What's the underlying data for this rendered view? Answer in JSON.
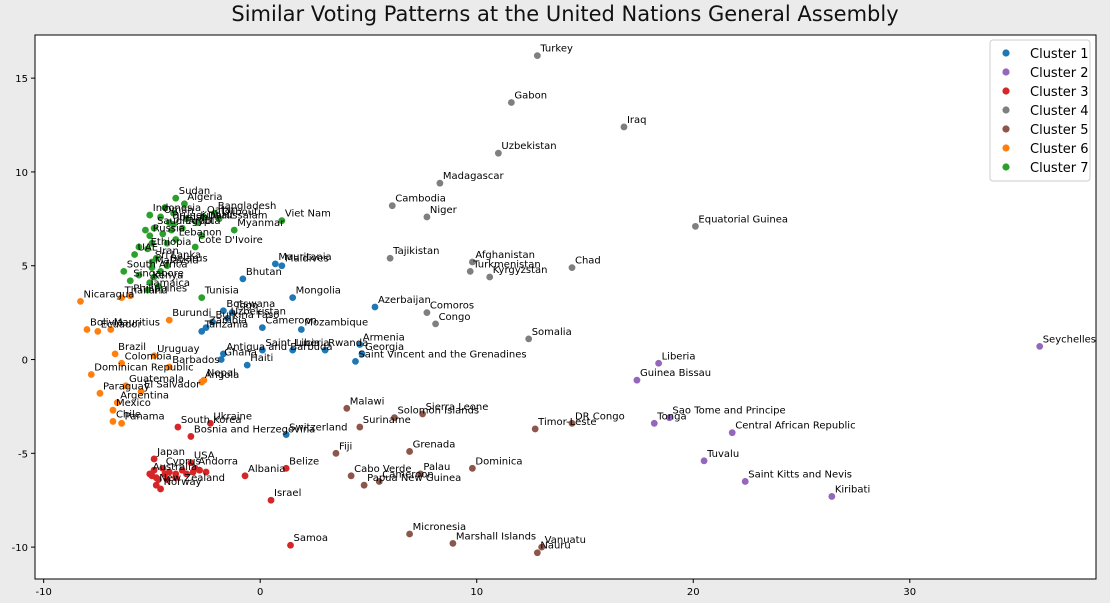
{
  "chart_data": {
    "type": "scatter",
    "title": "Similar Voting Patterns at the United Nations General Assembly",
    "xlabel": "",
    "ylabel": "",
    "xlim": [
      -10.4,
      38.6
    ],
    "ylim": [
      -11.7,
      17.3
    ],
    "xticks": [
      -10,
      0,
      10,
      20,
      30
    ],
    "yticks": [
      -10,
      -5,
      0,
      5,
      10,
      15
    ],
    "legend_position": "top-right",
    "grid": false,
    "series": [
      {
        "name": "Cluster 1",
        "color": "#1f77b4",
        "points": [
          {
            "label": "Bhutan",
            "x": -0.8,
            "y": 4.3
          },
          {
            "label": "Mauritania",
            "x": 0.7,
            "y": 5.1
          },
          {
            "label": "Maldives",
            "x": 1.0,
            "y": 5.0
          },
          {
            "label": "Mongolia",
            "x": 1.5,
            "y": 3.3
          },
          {
            "label": "Azerbaijan",
            "x": 5.3,
            "y": 2.8
          },
          {
            "label": "Botswana",
            "x": -1.7,
            "y": 2.6
          },
          {
            "label": "Togo",
            "x": -1.3,
            "y": 2.5
          },
          {
            "label": "Uzbekistan",
            "x": -1.5,
            "y": 2.2
          },
          {
            "label": "Burkina Faso",
            "x": -2.2,
            "y": 2.0
          },
          {
            "label": "Cameroon",
            "x": 0.1,
            "y": 1.7
          },
          {
            "label": "Mozambique",
            "x": 1.9,
            "y": 1.6
          },
          {
            "label": "Zambia",
            "x": -2.5,
            "y": 1.7
          },
          {
            "label": "Tanzania",
            "x": -2.7,
            "y": 1.5
          },
          {
            "label": "Armenia",
            "x": 4.6,
            "y": 0.8
          },
          {
            "label": "Antigua and Barbuda",
            "x": -1.7,
            "y": 0.3
          },
          {
            "label": "Ghana",
            "x": -1.8,
            "y": 0.0
          },
          {
            "label": "Saint Lucia",
            "x": 0.1,
            "y": 0.5
          },
          {
            "label": "Liberia",
            "x": 1.5,
            "y": 0.5
          },
          {
            "label": "Rwanda",
            "x": 3.0,
            "y": 0.5
          },
          {
            "label": "Georgia",
            "x": 4.7,
            "y": 0.3
          },
          {
            "label": "Haiti",
            "x": -0.6,
            "y": -0.3
          },
          {
            "label": "Saint Vincent and the Grenadines",
            "x": 4.4,
            "y": -0.1
          },
          {
            "label": "Switzerland",
            "x": 1.2,
            "y": -4.0
          }
        ]
      },
      {
        "name": "Cluster 2",
        "color": "#9467bd",
        "points": [
          {
            "label": "Seychelles",
            "x": 36.0,
            "y": 0.7
          },
          {
            "label": "Liberia",
            "x": 18.4,
            "y": -0.2
          },
          {
            "label": "Guinea Bissau",
            "x": 17.4,
            "y": -1.1
          },
          {
            "label": "Tonga",
            "x": 18.2,
            "y": -3.4
          },
          {
            "label": "Sao Tome and Principe",
            "x": 18.9,
            "y": -3.1
          },
          {
            "label": "Central African Republic",
            "x": 21.8,
            "y": -3.9
          },
          {
            "label": "Tuvalu",
            "x": 20.5,
            "y": -5.4
          },
          {
            "label": "Saint Kitts and Nevis",
            "x": 22.4,
            "y": -6.5
          },
          {
            "label": "Kiribati",
            "x": 26.4,
            "y": -7.3
          }
        ]
      },
      {
        "name": "Cluster 3",
        "color": "#d62728",
        "points": [
          {
            "label": "Ukraine",
            "x": -2.3,
            "y": -3.4
          },
          {
            "label": "South Korea",
            "x": -3.8,
            "y": -3.6
          },
          {
            "label": "Bosnia and Herzegovina",
            "x": -3.2,
            "y": -4.1
          },
          {
            "label": "Japan",
            "x": -4.9,
            "y": -5.3
          },
          {
            "label": "USA",
            "x": -3.2,
            "y": -5.5
          },
          {
            "label": "Andorra",
            "x": -3.0,
            "y": -5.8
          },
          {
            "label": "Cyprus",
            "x": -4.5,
            "y": -5.8
          },
          {
            "label": "Albania",
            "x": -0.7,
            "y": -6.2
          },
          {
            "label": "Belize",
            "x": 1.2,
            "y": -5.8
          },
          {
            "label": "New Zealand",
            "x": -4.8,
            "y": -6.7
          },
          {
            "label": "Israel",
            "x": 0.5,
            "y": -7.5
          },
          {
            "label": "Samoa",
            "x": 1.4,
            "y": -9.9
          },
          {
            "label": "Australia",
            "x": -5.1,
            "y": -6.1
          },
          {
            "label": "Norway",
            "x": -4.6,
            "y": -6.9
          },
          {
            "label": "",
            "x": -5.0,
            "y": -6.2
          },
          {
            "label": "",
            "x": -4.8,
            "y": -6.3
          },
          {
            "label": "",
            "x": -4.9,
            "y": -5.9
          },
          {
            "label": "",
            "x": -4.4,
            "y": -6.1
          },
          {
            "label": "",
            "x": -4.2,
            "y": -6.0
          },
          {
            "label": "",
            "x": -3.9,
            "y": -6.1
          },
          {
            "label": "",
            "x": -3.6,
            "y": -5.9
          },
          {
            "label": "",
            "x": -3.4,
            "y": -6.1
          },
          {
            "label": "",
            "x": -3.1,
            "y": -6.0
          },
          {
            "label": "",
            "x": -2.8,
            "y": -5.9
          },
          {
            "label": "",
            "x": -2.5,
            "y": -6.0
          },
          {
            "label": "",
            "x": -4.7,
            "y": -6.4
          },
          {
            "label": "",
            "x": -4.3,
            "y": -6.4
          },
          {
            "label": "",
            "x": -3.9,
            "y": -6.3
          }
        ]
      },
      {
        "name": "Cluster 4",
        "color": "#7f7f7f",
        "points": [
          {
            "label": "Turkey",
            "x": 12.8,
            "y": 16.2
          },
          {
            "label": "Gabon",
            "x": 11.6,
            "y": 13.7
          },
          {
            "label": "Iraq",
            "x": 16.8,
            "y": 12.4
          },
          {
            "label": "Uzbekistan",
            "x": 11.0,
            "y": 11.0
          },
          {
            "label": "Madagascar",
            "x": 8.3,
            "y": 9.4
          },
          {
            "label": "Cambodia",
            "x": 6.1,
            "y": 8.2
          },
          {
            "label": "Niger",
            "x": 7.7,
            "y": 7.6
          },
          {
            "label": "Equatorial Guinea",
            "x": 20.1,
            "y": 7.1
          },
          {
            "label": "Tajikistan",
            "x": 6.0,
            "y": 5.4
          },
          {
            "label": "Afghanistan",
            "x": 9.8,
            "y": 5.2
          },
          {
            "label": "Turkmenistan",
            "x": 9.7,
            "y": 4.7
          },
          {
            "label": "Kyrgyzstan",
            "x": 10.6,
            "y": 4.4
          },
          {
            "label": "Chad",
            "x": 14.4,
            "y": 4.9
          },
          {
            "label": "Comoros",
            "x": 7.7,
            "y": 2.5
          },
          {
            "label": "Congo",
            "x": 8.1,
            "y": 1.9
          },
          {
            "label": "Somalia",
            "x": 12.4,
            "y": 1.1
          }
        ]
      },
      {
        "name": "Cluster 5",
        "color": "#8c564b",
        "points": [
          {
            "label": "Malawi",
            "x": 4.0,
            "y": -2.6
          },
          {
            "label": "Solomon Islands",
            "x": 6.2,
            "y": -3.1
          },
          {
            "label": "Sierra Leone",
            "x": 7.5,
            "y": -2.9
          },
          {
            "label": "Suriname",
            "x": 4.6,
            "y": -3.6
          },
          {
            "label": "Timor-Leste",
            "x": 12.7,
            "y": -3.7
          },
          {
            "label": "DR Congo",
            "x": 14.4,
            "y": -3.4
          },
          {
            "label": "Fiji",
            "x": 3.5,
            "y": -5.0
          },
          {
            "label": "Grenada",
            "x": 6.9,
            "y": -4.9
          },
          {
            "label": "Dominica",
            "x": 9.8,
            "y": -5.8
          },
          {
            "label": "Cabo Verde",
            "x": 4.2,
            "y": -6.2
          },
          {
            "label": "Palau",
            "x": 7.4,
            "y": -6.1
          },
          {
            "label": "Cameroon",
            "x": 5.5,
            "y": -6.5
          },
          {
            "label": "Papua New Guinea",
            "x": 4.8,
            "y": -6.7
          },
          {
            "label": "Micronesia",
            "x": 6.9,
            "y": -9.3
          },
          {
            "label": "Marshall Islands",
            "x": 8.9,
            "y": -9.8
          },
          {
            "label": "Vanuatu",
            "x": 13.0,
            "y": -10.0
          },
          {
            "label": "Nauru",
            "x": 12.8,
            "y": -10.3
          }
        ]
      },
      {
        "name": "Cluster 6",
        "color": "#ff7f0e",
        "points": [
          {
            "label": "Nicaragua",
            "x": -8.3,
            "y": 3.1
          },
          {
            "label": "Thailand",
            "x": -6.4,
            "y": 3.3
          },
          {
            "label": "Philippines",
            "x": -6.0,
            "y": 3.4
          },
          {
            "label": "Burundi",
            "x": -4.2,
            "y": 2.1
          },
          {
            "label": "Bolivia",
            "x": -8.0,
            "y": 1.6
          },
          {
            "label": "Ecuador",
            "x": -7.5,
            "y": 1.5
          },
          {
            "label": "Mauritius",
            "x": -6.9,
            "y": 1.6
          },
          {
            "label": "Brazil",
            "x": -6.7,
            "y": 0.3
          },
          {
            "label": "Uruguay",
            "x": -4.9,
            "y": 0.2
          },
          {
            "label": "Colombia",
            "x": -6.4,
            "y": -0.2
          },
          {
            "label": "Dominican Republic",
            "x": -7.8,
            "y": -0.8
          },
          {
            "label": "Barbados",
            "x": -4.2,
            "y": -0.4
          },
          {
            "label": "Angola",
            "x": -2.7,
            "y": -1.2
          },
          {
            "label": "Nepal",
            "x": -2.6,
            "y": -1.1
          },
          {
            "label": "Guatemala",
            "x": -6.2,
            "y": -1.4
          },
          {
            "label": "Paraguay",
            "x": -7.4,
            "y": -1.8
          },
          {
            "label": "El Salvador",
            "x": -5.5,
            "y": -1.7
          },
          {
            "label": "Argentina",
            "x": -6.6,
            "y": -2.3
          },
          {
            "label": "Mexico",
            "x": -6.8,
            "y": -2.7
          },
          {
            "label": "Chile",
            "x": -6.8,
            "y": -3.3
          },
          {
            "label": "Panama",
            "x": -6.4,
            "y": -3.4
          }
        ]
      },
      {
        "name": "Cluster 7",
        "color": "#2ca02c",
        "points": [
          {
            "label": "Sudan",
            "x": -3.9,
            "y": 8.6
          },
          {
            "label": "Algeria",
            "x": -3.5,
            "y": 8.3
          },
          {
            "label": "Bangladesh",
            "x": -2.1,
            "y": 7.8
          },
          {
            "label": "Djibouti",
            "x": -1.9,
            "y": 7.5
          },
          {
            "label": "Viet Nam",
            "x": 1.0,
            "y": 7.4
          },
          {
            "label": "Brunei Darussalam",
            "x": -4.2,
            "y": 7.3
          },
          {
            "label": "Myanmar",
            "x": -1.2,
            "y": 6.9
          },
          {
            "label": "Saudi Arabia",
            "x": -4.9,
            "y": 7.0
          },
          {
            "label": "Russia",
            "x": -5.1,
            "y": 6.6
          },
          {
            "label": "Lebanon",
            "x": -3.9,
            "y": 6.4
          },
          {
            "label": "Cote D'Ivoire",
            "x": -3.0,
            "y": 6.0
          },
          {
            "label": "Ethiopia",
            "x": -5.2,
            "y": 5.9
          },
          {
            "label": "Iran",
            "x": -4.8,
            "y": 5.4
          },
          {
            "label": "UAE",
            "x": -5.8,
            "y": 5.6
          },
          {
            "label": "Belarus",
            "x": -4.3,
            "y": 5.0
          },
          {
            "label": "Sri Lanka",
            "x": -5.0,
            "y": 5.2
          },
          {
            "label": "South Africa",
            "x": -6.3,
            "y": 4.7
          },
          {
            "label": "Singapore",
            "x": -6.0,
            "y": 4.2
          },
          {
            "label": "Malaysia",
            "x": -5.0,
            "y": 4.9
          },
          {
            "label": "Kenya",
            "x": -5.1,
            "y": 4.1
          },
          {
            "label": "Jamaica",
            "x": -5.2,
            "y": 3.7
          },
          {
            "label": "Tunisia",
            "x": -2.7,
            "y": 3.3
          },
          {
            "label": "Indonesia",
            "x": -5.1,
            "y": 7.7
          },
          {
            "label": "Oman",
            "x": -4.6,
            "y": 7.6
          },
          {
            "label": "Jordan",
            "x": -4.0,
            "y": 7.2
          },
          {
            "label": "Egypt",
            "x": -3.6,
            "y": 7.0
          },
          {
            "label": "Qatar",
            "x": -2.6,
            "y": 7.6
          },
          {
            "label": "Kuwait",
            "x": -2.9,
            "y": 7.3
          },
          {
            "label": "",
            "x": -4.4,
            "y": 8.1
          },
          {
            "label": "",
            "x": -4.0,
            "y": 7.8
          },
          {
            "label": "",
            "x": -3.4,
            "y": 7.5
          },
          {
            "label": "",
            "x": -5.3,
            "y": 6.9
          },
          {
            "label": "",
            "x": -4.5,
            "y": 6.7
          },
          {
            "label": "",
            "x": -4.1,
            "y": 6.9
          },
          {
            "label": "",
            "x": -5.0,
            "y": 6.2
          },
          {
            "label": "",
            "x": -4.3,
            "y": 6.2
          },
          {
            "label": "",
            "x": -5.6,
            "y": 6.0
          },
          {
            "label": "",
            "x": -4.6,
            "y": 4.7
          },
          {
            "label": "",
            "x": -4.9,
            "y": 4.4
          },
          {
            "label": "",
            "x": -5.6,
            "y": 4.5
          },
          {
            "label": "",
            "x": -4.7,
            "y": 3.9
          },
          {
            "label": "",
            "x": -2.7,
            "y": 6.6
          }
        ]
      }
    ]
  }
}
